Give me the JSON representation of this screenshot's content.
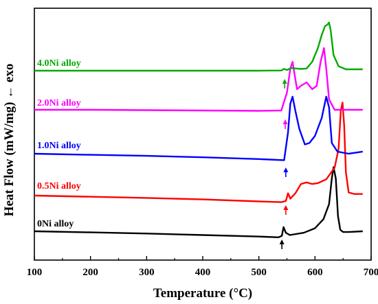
{
  "chart_data": {
    "type": "line",
    "xlabel": "Temperature (°C)",
    "ylabel": "Heat Flow (mW/mg) ← exo",
    "xlim": [
      100,
      700
    ],
    "x_ticks": [
      "100",
      "200",
      "300",
      "400",
      "500",
      "600",
      "700"
    ],
    "y_ticks": [],
    "grid": false,
    "legend": "inline labels to the left of each curve",
    "series": [
      {
        "name": "0Ni alloy",
        "color": "#000000",
        "x": [
          100,
          200,
          300,
          400,
          500,
          535,
          541,
          544,
          548,
          555,
          580,
          600,
          615,
          625,
          630,
          633,
          637,
          641,
          645,
          650,
          660,
          685
        ],
        "y": [
          0.0,
          -0.15,
          -0.3,
          -0.5,
          -0.7,
          -0.8,
          -0.6,
          0.55,
          -0.2,
          -0.5,
          -0.2,
          0.4,
          1.6,
          3.6,
          7.0,
          8.5,
          7.0,
          2.0,
          0.2,
          -0.1,
          -0.1,
          0.0
        ],
        "arrow_x": 541
      },
      {
        "name": "0.5Ni alloy",
        "color": "#ff0000",
        "x": [
          100,
          200,
          300,
          400,
          500,
          540,
          548,
          552,
          556,
          565,
          575,
          585,
          595,
          605,
          620,
          635,
          642,
          646,
          649,
          652,
          655,
          660,
          670,
          685
        ],
        "y": [
          0.0,
          -0.15,
          -0.3,
          -0.5,
          -0.75,
          -0.85,
          -0.7,
          0.3,
          -0.4,
          0.3,
          1.5,
          1.7,
          1.5,
          1.6,
          2.1,
          3.6,
          6.0,
          11.0,
          12.0,
          9.0,
          3.0,
          0.4,
          0.2,
          0.2
        ],
        "arrow_x": 548
      },
      {
        "name": "1.0Ni alloy",
        "color": "#0000ff",
        "x": [
          100,
          200,
          300,
          400,
          500,
          545,
          552,
          556,
          560,
          565,
          572,
          582,
          590,
          600,
          612,
          620,
          625,
          630,
          640,
          660,
          685
        ],
        "y": [
          0.0,
          -0.15,
          -0.3,
          -0.5,
          -0.75,
          -0.9,
          3.0,
          7.0,
          8.0,
          6.0,
          3.5,
          1.3,
          1.5,
          2.5,
          5.0,
          8.0,
          6.5,
          1.5,
          0.3,
          0.0,
          0.3
        ],
        "arrow_x": 548
      },
      {
        "name": "2.0Ni alloy",
        "color": "#ff00ff",
        "x": [
          100,
          200,
          300,
          400,
          500,
          540,
          550,
          556,
          560,
          564,
          568,
          575,
          585,
          595,
          603,
          610,
          616,
          620,
          625,
          635,
          685
        ],
        "y": [
          0.0,
          0.0,
          -0.05,
          -0.1,
          -0.15,
          -0.1,
          2.5,
          6.0,
          7.0,
          5.0,
          3.0,
          3.5,
          4.0,
          3.0,
          3.5,
          7.0,
          9.0,
          6.0,
          1.5,
          0.0,
          0.0
        ],
        "arrow_x": 547
      },
      {
        "name": "4.0Ni alloy",
        "color": "#00aa00",
        "x": [
          100,
          200,
          300,
          400,
          500,
          540,
          545,
          550,
          558,
          566,
          575,
          585,
          595,
          605,
          612,
          618,
          622,
          625,
          628,
          633,
          642,
          655,
          685
        ],
        "y": [
          0.0,
          0.0,
          0.0,
          0.0,
          0.0,
          0.05,
          0.4,
          0.15,
          0.6,
          0.5,
          0.4,
          0.5,
          2.0,
          5.0,
          8.0,
          10.0,
          10.3,
          10.8,
          9.0,
          3.5,
          1.0,
          0.3,
          0.3
        ],
        "arrow_x": 546
      }
    ]
  }
}
